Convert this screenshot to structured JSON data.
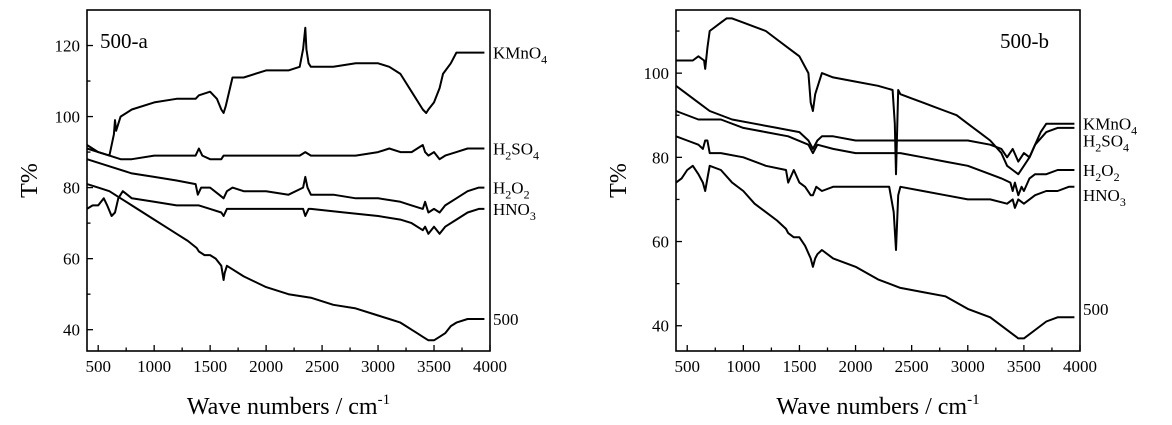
{
  "chart_data": [
    {
      "type": "line",
      "title": "500-a",
      "xlabel": "Wave numbers / cm",
      "xlabel_sup": "-1",
      "ylabel": "T%",
      "xlim": [
        400,
        4000
      ],
      "ylim": [
        34,
        130
      ],
      "x_ticks": [
        500,
        1000,
        1500,
        2000,
        2500,
        3000,
        3500,
        4000
      ],
      "y_ticks": [
        40,
        60,
        80,
        100,
        120
      ],
      "grid": false,
      "series": [
        {
          "name": "KMnO4",
          "label_parts": [
            {
              "t": "KMnO"
            },
            {
              "t": "4",
              "sub": true
            }
          ],
          "label_y": 118,
          "x": [
            400,
            500,
            600,
            640,
            650,
            660,
            700,
            800,
            1000,
            1200,
            1370,
            1400,
            1500,
            1560,
            1600,
            1620,
            1640,
            1700,
            1800,
            2000,
            2200,
            2300,
            2330,
            2350,
            2360,
            2380,
            2400,
            2600,
            2800,
            3000,
            3100,
            3200,
            3300,
            3400,
            3430,
            3450,
            3500,
            3550,
            3580,
            3650,
            3700,
            3800,
            3850,
            3900,
            3950
          ],
          "y": [
            92,
            90,
            89,
            95,
            99,
            96,
            100,
            102,
            104,
            105,
            105,
            106,
            107,
            105,
            102,
            101,
            103,
            111,
            111,
            113,
            113,
            114,
            119,
            125,
            119,
            115,
            114,
            114,
            115,
            115,
            114,
            112,
            107,
            102,
            101,
            102,
            104,
            108,
            112,
            115,
            118,
            118,
            118,
            118,
            118
          ]
        },
        {
          "name": "H2SO4",
          "label_parts": [
            {
              "t": "H"
            },
            {
              "t": "2",
              "sub": true
            },
            {
              "t": "SO"
            },
            {
              "t": "4",
              "sub": true
            }
          ],
          "label_y": 91,
          "x": [
            400,
            500,
            600,
            700,
            800,
            1000,
            1300,
            1370,
            1400,
            1430,
            1500,
            1600,
            1620,
            1650,
            1800,
            2000,
            2300,
            2350,
            2400,
            2800,
            3000,
            3100,
            3200,
            3300,
            3400,
            3420,
            3450,
            3500,
            3550,
            3600,
            3700,
            3800,
            3900,
            3950
          ],
          "y": [
            91,
            90,
            89,
            88,
            88,
            89,
            89,
            89,
            91,
            89,
            88,
            88,
            89,
            89,
            89,
            89,
            89,
            90,
            89,
            89,
            90,
            91,
            90,
            90,
            92,
            90,
            89,
            90,
            88,
            89,
            90,
            91,
            91,
            91
          ]
        },
        {
          "name": "H2O2",
          "label_parts": [
            {
              "t": "H"
            },
            {
              "t": "2",
              "sub": true
            },
            {
              "t": "O"
            },
            {
              "t": "2",
              "sub": true
            }
          ],
          "label_y": 80,
          "x": [
            400,
            600,
            800,
            1000,
            1200,
            1370,
            1390,
            1420,
            1500,
            1580,
            1620,
            1650,
            1700,
            1800,
            2000,
            2200,
            2330,
            2350,
            2370,
            2400,
            2600,
            2800,
            3000,
            3200,
            3300,
            3400,
            3420,
            3450,
            3500,
            3550,
            3600,
            3700,
            3800,
            3900,
            3950
          ],
          "y": [
            88,
            86,
            84,
            83,
            82,
            81,
            78,
            80,
            80,
            78,
            77,
            79,
            80,
            79,
            79,
            78,
            80,
            83,
            80,
            78,
            78,
            77,
            77,
            76,
            75,
            74,
            76,
            73,
            74,
            73,
            75,
            77,
            79,
            80,
            80
          ]
        },
        {
          "name": "HNO3",
          "label_parts": [
            {
              "t": "HNO"
            },
            {
              "t": "3",
              "sub": true
            }
          ],
          "label_y": 74,
          "x": [
            400,
            450,
            500,
            550,
            580,
            620,
            650,
            680,
            720,
            760,
            800,
            1000,
            1200,
            1400,
            1500,
            1600,
            1620,
            1650,
            1700,
            1900,
            2200,
            2330,
            2350,
            2380,
            2400,
            2700,
            3000,
            3200,
            3300,
            3400,
            3420,
            3450,
            3500,
            3550,
            3600,
            3700,
            3800,
            3900,
            3950
          ],
          "y": [
            74,
            75,
            75,
            77,
            75,
            72,
            73,
            77,
            79,
            78,
            77,
            76,
            75,
            75,
            74,
            73,
            72,
            74,
            74,
            74,
            74,
            74,
            72,
            74,
            74,
            73,
            72,
            71,
            70,
            68,
            69,
            67,
            69,
            67,
            69,
            71,
            73,
            74,
            74
          ]
        },
        {
          "name": "500",
          "label_parts": [
            {
              "t": "500"
            }
          ],
          "label_y": 43,
          "x": [
            400,
            500,
            600,
            700,
            800,
            900,
            1000,
            1100,
            1200,
            1300,
            1380,
            1400,
            1450,
            1500,
            1550,
            1600,
            1620,
            1630,
            1650,
            1700,
            1800,
            2000,
            2200,
            2400,
            2600,
            2800,
            3000,
            3100,
            3200,
            3250,
            3300,
            3350,
            3400,
            3450,
            3500,
            3550,
            3600,
            3650,
            3700,
            3800,
            3900,
            3950
          ],
          "y": [
            81,
            80,
            79,
            77,
            75,
            73,
            71,
            69,
            67,
            65,
            63,
            62,
            61,
            61,
            60,
            58,
            54,
            56,
            58,
            57,
            55,
            52,
            50,
            49,
            47,
            46,
            44,
            43,
            42,
            41,
            40,
            39,
            38,
            37,
            37,
            38,
            39,
            41,
            42,
            43,
            43,
            43
          ]
        }
      ]
    },
    {
      "type": "line",
      "title": "500-b",
      "xlabel": "Wave numbers / cm",
      "xlabel_sup": "-1",
      "ylabel": "T%",
      "xlim": [
        400,
        4000
      ],
      "ylim": [
        34,
        115
      ],
      "x_ticks": [
        500,
        1000,
        1500,
        2000,
        2500,
        3000,
        3500,
        4000
      ],
      "y_ticks": [
        40,
        60,
        80,
        100
      ],
      "grid": false,
      "series": [
        {
          "name": "KMnO4",
          "label_parts": [
            {
              "t": "KMnO"
            },
            {
              "t": "4",
              "sub": true
            }
          ],
          "label_y": 88,
          "x": [
            400,
            500,
            550,
            600,
            650,
            660,
            680,
            700,
            800,
            850,
            900,
            1000,
            1100,
            1200,
            1300,
            1400,
            1500,
            1580,
            1600,
            1620,
            1640,
            1700,
            1800,
            2000,
            2200,
            2330,
            2350,
            2360,
            2380,
            2400,
            2500,
            2600,
            2700,
            2800,
            2900,
            3000,
            3100,
            3200,
            3300,
            3350,
            3400,
            3450,
            3500,
            3550,
            3600,
            3650,
            3700,
            3800,
            3900,
            3950
          ],
          "y": [
            103,
            103,
            103,
            104,
            103,
            101,
            106,
            110,
            112,
            113,
            113,
            112,
            111,
            110,
            108,
            106,
            104,
            100,
            93,
            91,
            95,
            100,
            99,
            98,
            97,
            96,
            88,
            76,
            96,
            95,
            94,
            93,
            92,
            91,
            90,
            88,
            86,
            84,
            81,
            78,
            77,
            76,
            78,
            80,
            83,
            86,
            88,
            88,
            88,
            88
          ]
        },
        {
          "name": "H2SO4",
          "label_parts": [
            {
              "t": "H"
            },
            {
              "t": "2",
              "sub": true
            },
            {
              "t": "SO"
            },
            {
              "t": "4",
              "sub": true
            }
          ],
          "label_y": 84,
          "x": [
            400,
            500,
            600,
            700,
            900,
            1100,
            1300,
            1500,
            1580,
            1620,
            1660,
            1700,
            1800,
            2000,
            2200,
            2400,
            2600,
            2800,
            3000,
            3200,
            3300,
            3350,
            3400,
            3450,
            3500,
            3550,
            3600,
            3700,
            3800,
            3900,
            3950
          ],
          "y": [
            97,
            95,
            93,
            91,
            89,
            88,
            87,
            86,
            84,
            82,
            84,
            85,
            85,
            84,
            84,
            84,
            84,
            84,
            84,
            83,
            82,
            80,
            82,
            79,
            81,
            80,
            83,
            86,
            87,
            87,
            87
          ]
        },
        {
          "name": "H2O2",
          "label_parts": [
            {
              "t": "H"
            },
            {
              "t": "2",
              "sub": true
            },
            {
              "t": "O"
            },
            {
              "t": "2",
              "sub": true
            }
          ],
          "label_y": 77,
          "x": [
            400,
            600,
            800,
            1000,
            1200,
            1400,
            1580,
            1620,
            1660,
            1800,
            2000,
            2200,
            2400,
            2600,
            2800,
            3000,
            3200,
            3300,
            3380,
            3400,
            3420,
            3450,
            3480,
            3500,
            3550,
            3600,
            3700,
            3800,
            3900,
            3950
          ],
          "y": [
            91,
            89,
            89,
            87,
            86,
            85,
            83,
            81,
            83,
            82,
            81,
            81,
            81,
            80,
            79,
            78,
            76,
            75,
            74,
            72,
            74,
            71,
            73,
            72,
            75,
            76,
            76,
            77,
            77,
            77
          ]
        },
        {
          "name": "HNO3",
          "label_parts": [
            {
              "t": "HNO"
            },
            {
              "t": "3",
              "sub": true
            }
          ],
          "label_y": 71,
          "x": [
            400,
            500,
            600,
            640,
            660,
            680,
            700,
            800,
            1000,
            1200,
            1380,
            1400,
            1450,
            1500,
            1550,
            1600,
            1620,
            1650,
            1700,
            1800,
            2000,
            2200,
            2300,
            2340,
            2360,
            2380,
            2400,
            2600,
            2800,
            3000,
            3200,
            3350,
            3400,
            3420,
            3450,
            3500,
            3550,
            3600,
            3700,
            3800,
            3900,
            3950
          ],
          "y": [
            85,
            84,
            83,
            82,
            84,
            84,
            81,
            81,
            80,
            78,
            77,
            74,
            77,
            74,
            73,
            71,
            71,
            73,
            72,
            73,
            73,
            73,
            73,
            67,
            58,
            71,
            73,
            72,
            71,
            70,
            70,
            69,
            70,
            68,
            70,
            69,
            70,
            71,
            72,
            72,
            73,
            73
          ]
        },
        {
          "name": "500",
          "label_parts": [
            {
              "t": "500"
            }
          ],
          "label_y": 44,
          "x": [
            400,
            450,
            500,
            550,
            600,
            640,
            660,
            680,
            700,
            800,
            900,
            1000,
            1100,
            1200,
            1300,
            1380,
            1400,
            1450,
            1500,
            1550,
            1600,
            1620,
            1640,
            1660,
            1700,
            1800,
            2000,
            2200,
            2400,
            2600,
            2800,
            3000,
            3200,
            3300,
            3400,
            3450,
            3500,
            3600,
            3700,
            3800,
            3900,
            3950
          ],
          "y": [
            74,
            75,
            77,
            78,
            76,
            74,
            72,
            75,
            78,
            77,
            74,
            72,
            69,
            67,
            65,
            63,
            62,
            61,
            61,
            59,
            56,
            54,
            56,
            57,
            58,
            56,
            54,
            51,
            49,
            48,
            47,
            44,
            42,
            40,
            38,
            37,
            37,
            39,
            41,
            42,
            42,
            42
          ]
        }
      ]
    }
  ]
}
